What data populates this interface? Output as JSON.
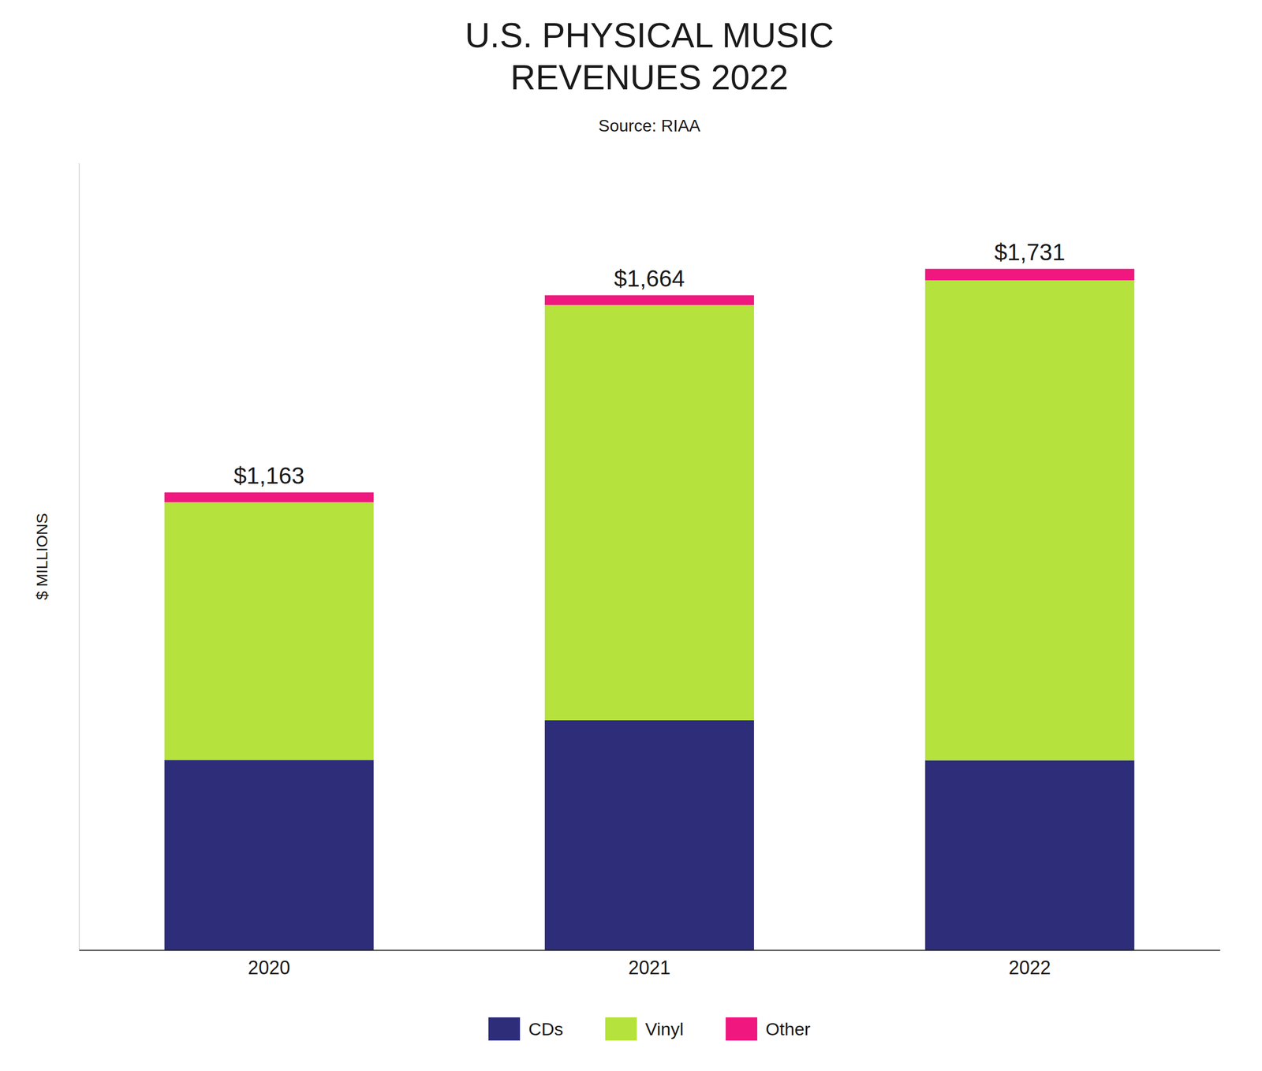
{
  "chart_data": {
    "type": "bar",
    "title": "U.S. PHYSICAL MUSIC\nREVENUES 2022",
    "subtitle": "Source: RIAA",
    "ylabel": "$ MILLIONS",
    "categories": [
      "2020",
      "2021",
      "2022"
    ],
    "series": [
      {
        "name": "CDs",
        "color": "#2d2d7a",
        "values": [
          483,
          584,
          482
        ]
      },
      {
        "name": "Vinyl",
        "color": "#b5e23d",
        "values": [
          655,
          1055,
          1220
        ]
      },
      {
        "name": "Other",
        "color": "#f0177f",
        "values": [
          25,
          25,
          29
        ]
      }
    ],
    "totals": [
      1163,
      1664,
      1731
    ],
    "total_labels": [
      "$1,163",
      "$1,664",
      "$1,731"
    ],
    "stacked": true,
    "ylim": [
      0,
      2000
    ],
    "tick_labels": "x",
    "grid": false,
    "legend": "bottom"
  }
}
